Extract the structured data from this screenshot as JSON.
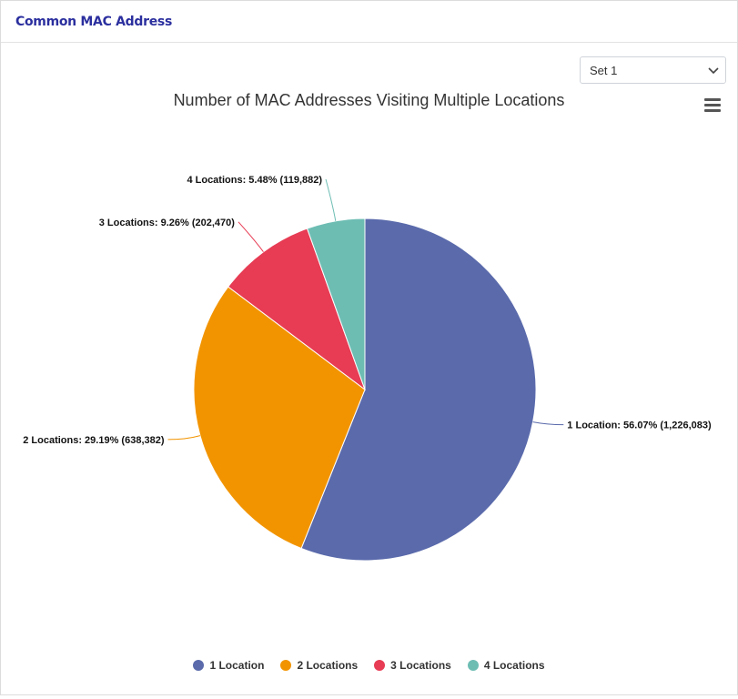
{
  "card": {
    "title": "Common MAC Address"
  },
  "select": {
    "value": "Set 1"
  },
  "icons": {
    "menu": "hamburger-menu-icon",
    "dropdown": "chevron-down-icon"
  },
  "chart_data": {
    "type": "pie",
    "title": "Number of MAC Addresses Visiting Multiple Locations",
    "legend_position": "bottom",
    "slices": [
      {
        "name": "1 Location",
        "value": 1226083,
        "percent": 56.07,
        "label": "1 Location: 56.07% (1,226,083)",
        "color": "#5a6aab"
      },
      {
        "name": "2 Locations",
        "value": 638382,
        "percent": 29.19,
        "label": "2 Locations: 29.19% (638,382)",
        "color": "#f29400"
      },
      {
        "name": "3 Locations",
        "value": 202470,
        "percent": 9.26,
        "label": "3 Locations: 9.26% (202,470)",
        "color": "#e73c54"
      },
      {
        "name": "4 Locations",
        "value": 119882,
        "percent": 5.48,
        "label": "4 Locations: 5.48% (119,882)",
        "color": "#6dbdb3"
      }
    ]
  }
}
